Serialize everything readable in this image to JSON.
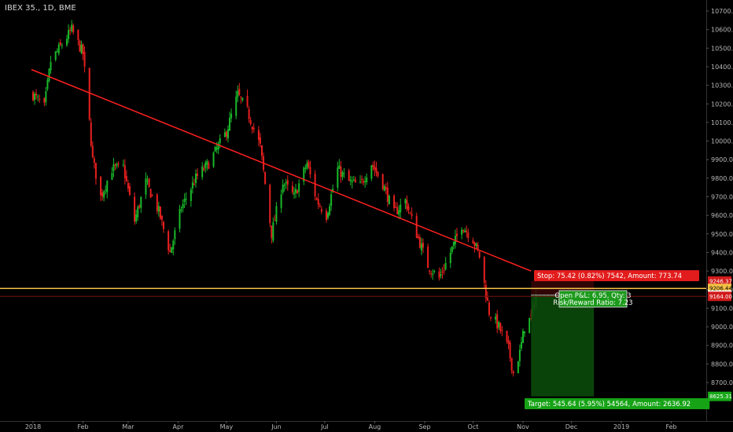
{
  "header": {
    "symbol": "IBEX 35., 1D, BME"
  },
  "chart_data": {
    "type": "candlestick",
    "title": "IBEX 35., 1D, BME",
    "y_ticks": [
      8700,
      8800,
      8900,
      9000,
      9100,
      9200,
      9300,
      9400,
      9500,
      9600,
      9700,
      9800,
      9900,
      10000,
      10100,
      10200,
      10300,
      10400,
      10500,
      10600,
      10700
    ],
    "y_tick_labels": [
      "8700.00",
      "8800.00",
      "8900.00",
      "9000.00",
      "9100.00",
      "9200.00",
      "9300.00",
      "9400.00",
      "9500.00",
      "9600.00",
      "9700.00",
      "9800.00",
      "9900.00",
      "10000.00",
      "10100.00",
      "10200.00",
      "10300.00",
      "10400.00",
      "10500.00",
      "10600.00",
      "10700.00"
    ],
    "x_labels": [
      "2018",
      "Feb",
      "Mar",
      "Apr",
      "May",
      "Jun",
      "Jul",
      "Aug",
      "Sep",
      "Oct",
      "Nov",
      "Dec",
      "2019",
      "Feb"
    ],
    "x_label_dates": [
      "2018-01-01",
      "2018-02-01",
      "2018-03-01",
      "2018-04-01",
      "2018-05-01",
      "2018-06-01",
      "2018-07-01",
      "2018-08-01",
      "2018-09-01",
      "2018-10-01",
      "2018-11-01",
      "2018-12-01",
      "2019-01-01",
      "2019-02-01"
    ],
    "close_path": [
      [
        "2018-01-01",
        10250
      ],
      [
        "2018-01-08",
        10180
      ],
      [
        "2018-01-12",
        10430
      ],
      [
        "2018-01-19",
        10520
      ],
      [
        "2018-01-25",
        10600
      ],
      [
        "2018-02-01",
        10470
      ],
      [
        "2018-02-05",
        10100
      ],
      [
        "2018-02-07",
        9900
      ],
      [
        "2018-02-12",
        9700
      ],
      [
        "2018-02-19",
        9850
      ],
      [
        "2018-02-26",
        9860
      ],
      [
        "2018-03-05",
        9570
      ],
      [
        "2018-03-12",
        9780
      ],
      [
        "2018-03-20",
        9620
      ],
      [
        "2018-03-27",
        9400
      ],
      [
        "2018-04-03",
        9640
      ],
      [
        "2018-04-12",
        9800
      ],
      [
        "2018-04-20",
        9880
      ],
      [
        "2018-05-01",
        10050
      ],
      [
        "2018-05-08",
        10250
      ],
      [
        "2018-05-14",
        10160
      ],
      [
        "2018-05-22",
        9970
      ],
      [
        "2018-05-29",
        9500
      ],
      [
        "2018-06-05",
        9780
      ],
      [
        "2018-06-12",
        9700
      ],
      [
        "2018-06-20",
        9880
      ],
      [
        "2018-06-26",
        9680
      ],
      [
        "2018-07-02",
        9600
      ],
      [
        "2018-07-09",
        9850
      ],
      [
        "2018-07-16",
        9780
      ],
      [
        "2018-07-23",
        9760
      ],
      [
        "2018-07-30",
        9880
      ],
      [
        "2018-08-06",
        9770
      ],
      [
        "2018-08-13",
        9610
      ],
      [
        "2018-08-20",
        9680
      ],
      [
        "2018-08-27",
        9500
      ],
      [
        "2018-09-03",
        9330
      ],
      [
        "2018-09-10",
        9260
      ],
      [
        "2018-09-17",
        9400
      ],
      [
        "2018-09-24",
        9550
      ],
      [
        "2018-10-01",
        9470
      ],
      [
        "2018-10-05",
        9380
      ],
      [
        "2018-10-11",
        9080
      ],
      [
        "2018-10-17",
        9000
      ],
      [
        "2018-10-23",
        8880
      ],
      [
        "2018-10-26",
        8750
      ],
      [
        "2018-10-30",
        8860
      ],
      [
        "2018-11-02",
        9000
      ],
      [
        "2018-11-06",
        9050
      ],
      [
        "2018-11-09",
        9180
      ]
    ],
    "price_min": 8625,
    "price_max": 10700,
    "trendline": {
      "start": [
        "2017-12-31",
        10385
      ],
      "end": [
        "2018-11-06",
        9300
      ]
    },
    "horizontal_line": 9206.44,
    "position": {
      "entry": 9170.95,
      "stop": 9246.37,
      "target": 8625.31,
      "start_date": "2018-11-06",
      "end_date": "2018-12-15"
    },
    "price_tags": {
      "stop": "9246.37",
      "line": "9206.44",
      "current": "9170.95",
      "low": "9164.00",
      "target": "8625.31"
    },
    "colors": {
      "up": "#19b92a",
      "down": "#e8201f",
      "trendline": "#ff2020",
      "hline": "#f3c144",
      "target_zone": "#0b4a0b",
      "stop_zone": "#3a0708"
    }
  },
  "labels": {
    "stop": "Stop: 75.42 (0.82%) 7542, Amount: 773.74",
    "open_pl": "Open P&L: 6.95, Qty: 3",
    "risk_reward": "Risk/Reward Ratio: 7.23",
    "target": "Target: 545.64 (5.95%) 54564, Amount: 2636.92"
  }
}
